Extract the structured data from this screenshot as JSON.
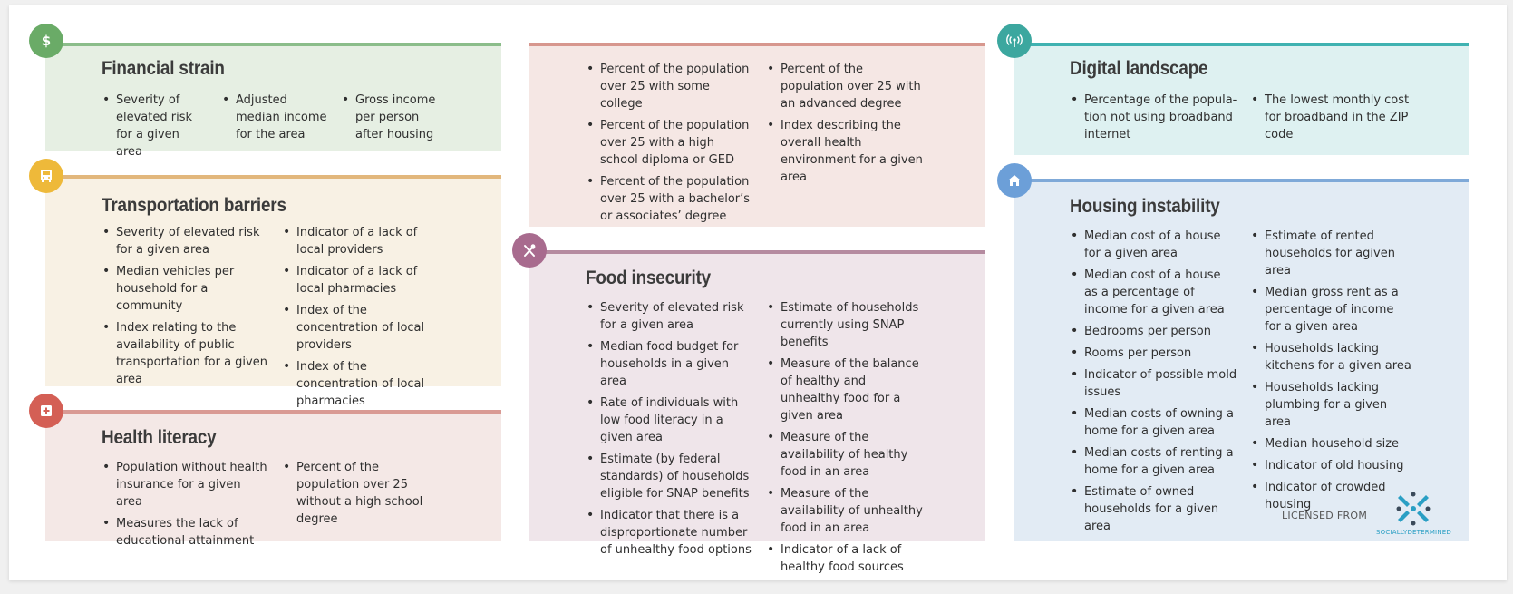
{
  "colors": {
    "financial": {
      "bg": "#e6efe3",
      "bar": "#8bbd8a",
      "icon": "#6aab67"
    },
    "transport": {
      "bg": "#f8f1e4",
      "bar": "#e2b77c",
      "icon": "#eeb93a"
    },
    "health": {
      "bg": "#f4e8e6",
      "bar": "#d99a94",
      "icon": "#d45f55"
    },
    "education": {
      "bg": "#f5e7e4",
      "bar": "#d7978e"
    },
    "food": {
      "bg": "#efe5ea",
      "bar": "#b58ba0",
      "icon": "#a86b8e"
    },
    "digital": {
      "bg": "#def1f1",
      "bar": "#3fb2b1",
      "icon": "#3ca79f"
    },
    "housing": {
      "bg": "#e2ebf4",
      "bar": "#7fa9d8",
      "icon": "#6c9fd8"
    }
  },
  "financial": {
    "icon": "dollar-icon",
    "title": "Financial strain",
    "col1": [
      "Severity of elevated risk for a given area"
    ],
    "col2": [
      "Adjusted median income for the area"
    ],
    "col3": [
      "Gross income per person after housing"
    ]
  },
  "transport": {
    "icon": "bus-icon",
    "title": "Transportation barriers",
    "col1": [
      "Severity of elevated risk for a given area",
      "Median vehicles per house­hold for a community",
      "Index relating to the availability of public trans­portation for a given area"
    ],
    "col2": [
      "Indicator of a lack of local providers",
      "Indicator of a lack of local pharmacies",
      "Index of the concentration of local providers",
      "Index of the concentration of local pharmacies"
    ]
  },
  "health": {
    "icon": "medical-kit-icon",
    "title": "Health literacy",
    "col1": [
      "Population without health insurance for a given area",
      "Measures the lack of educa­tional attainment"
    ],
    "col2": [
      "Percent of the population over 25 without a high school degree"
    ]
  },
  "education": {
    "col1": [
      "Percent of the population over 25 with some college",
      "Percent of the population over 25 with a high school diploma or GED",
      "Percent of the population over 25 with a bachelor’s or associates’ degree"
    ],
    "col2": [
      "Percent of the population over 25 with an advanced degree",
      "Index describing the overall health environment for a given area"
    ]
  },
  "food": {
    "icon": "fork-spoon-icon",
    "title": "Food insecurity",
    "col1": [
      "Severity of elevated risk for a given area",
      "Median food budget for households in a given area",
      "Rate of individuals with low food literacy in a given area",
      "Estimate (by federal standards) of households eligible for SNAP benefits",
      "Indicator that there is a disproportionate number of unhealthy food options"
    ],
    "col2": [
      "Estimate of households cur­rently using SNAP benefits",
      "Measure of the balance of healthy and unhealthy food for a given area",
      "Measure of the availability of healthy food in an area",
      "Measure of the availability of unhealthy food in an area",
      "Indicator of a lack of healthy food sources"
    ]
  },
  "digital": {
    "icon": "wifi-tower-icon",
    "title": "Digital landscape",
    "col1": [
      "Percentage of the popula­tion not using broadband internet"
    ],
    "col2": [
      "The lowest monthly cost for broadband in the ZIP code"
    ]
  },
  "housing": {
    "icon": "house-icon",
    "title": "Housing instability",
    "col1": [
      "Median cost of a house for a given area",
      "Median cost of a house as a percentage of income for a given area",
      "Bedrooms per person",
      "Rooms per person",
      "Indicator of possible mold issues",
      "Median costs of owning a home for a given area",
      "Median costs of renting a home for a given area",
      "Estimate of owned house­holds for a given area"
    ],
    "col2": [
      "Estimate of rented house­holds for agiven area",
      "Median gross rent as a percentage of income for a given area",
      "Households lacking kitchens for a given area",
      "Households lacking plumb­ing for a given area",
      "Median household size",
      "Indicator of old housing",
      "Indicator of crowded housing"
    ]
  },
  "license": {
    "text": "LICENSED FROM",
    "brand": "SOCIALLYDETERMINED",
    "logo": "socially-determined-logo"
  }
}
